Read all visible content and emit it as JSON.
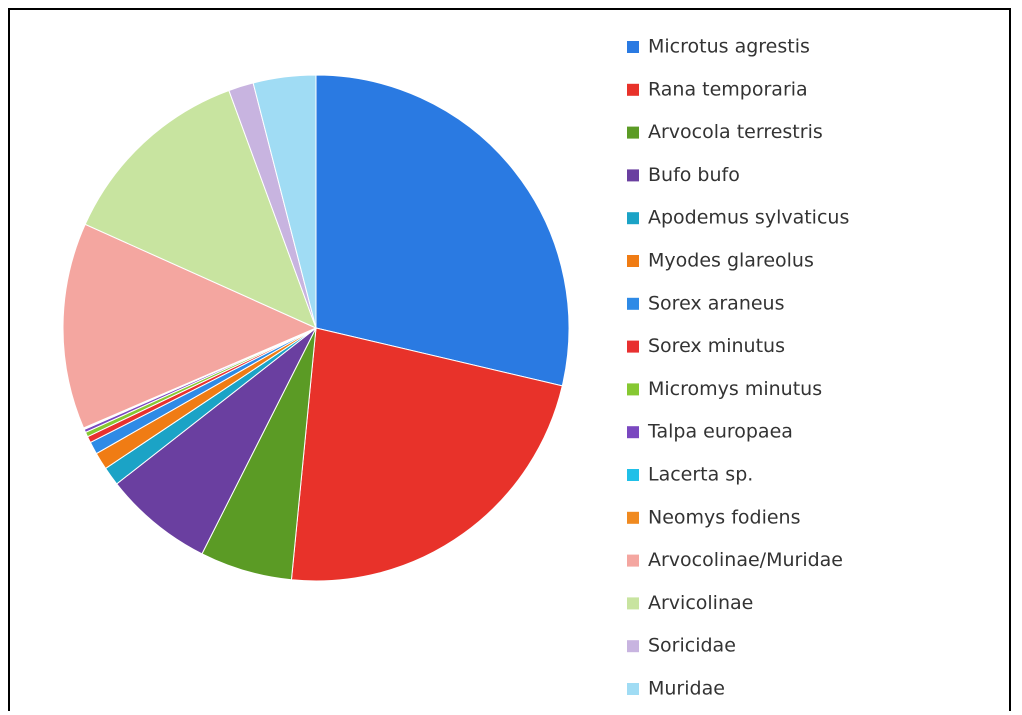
{
  "chart_data": {
    "type": "pie",
    "categories": [
      "Microtus agrestis",
      "Rana temporaria",
      "Arvocola terrestris",
      "Bufo bufo",
      "Apodemus sylvaticus",
      "Myodes glareolus",
      "Sorex araneus",
      "Sorex minutus",
      "Micromys minutus",
      "Talpa europaea",
      "Lacerta sp.",
      "Neomys fodiens",
      "Arvocolinae/Muridae",
      "Arvicolinae",
      "Soricidae",
      "Muridae"
    ],
    "values": [
      28.7,
      22.9,
      5.9,
      7.0,
      1.2,
      1.1,
      0.8,
      0.4,
      0.3,
      0.2,
      0.05,
      0.05,
      13.2,
      12.7,
      1.6,
      4.0
    ],
    "colors": [
      "#2a7ae2",
      "#e8322a",
      "#5b9b25",
      "#6a3fa0",
      "#1ba3c6",
      "#f07c14",
      "#2e8ae6",
      "#e83030",
      "#86c832",
      "#7a48c0",
      "#20c0e8",
      "#f08a20",
      "#f4a6a0",
      "#c8e4a0",
      "#c8b4e0",
      "#a0dcf4"
    ]
  }
}
